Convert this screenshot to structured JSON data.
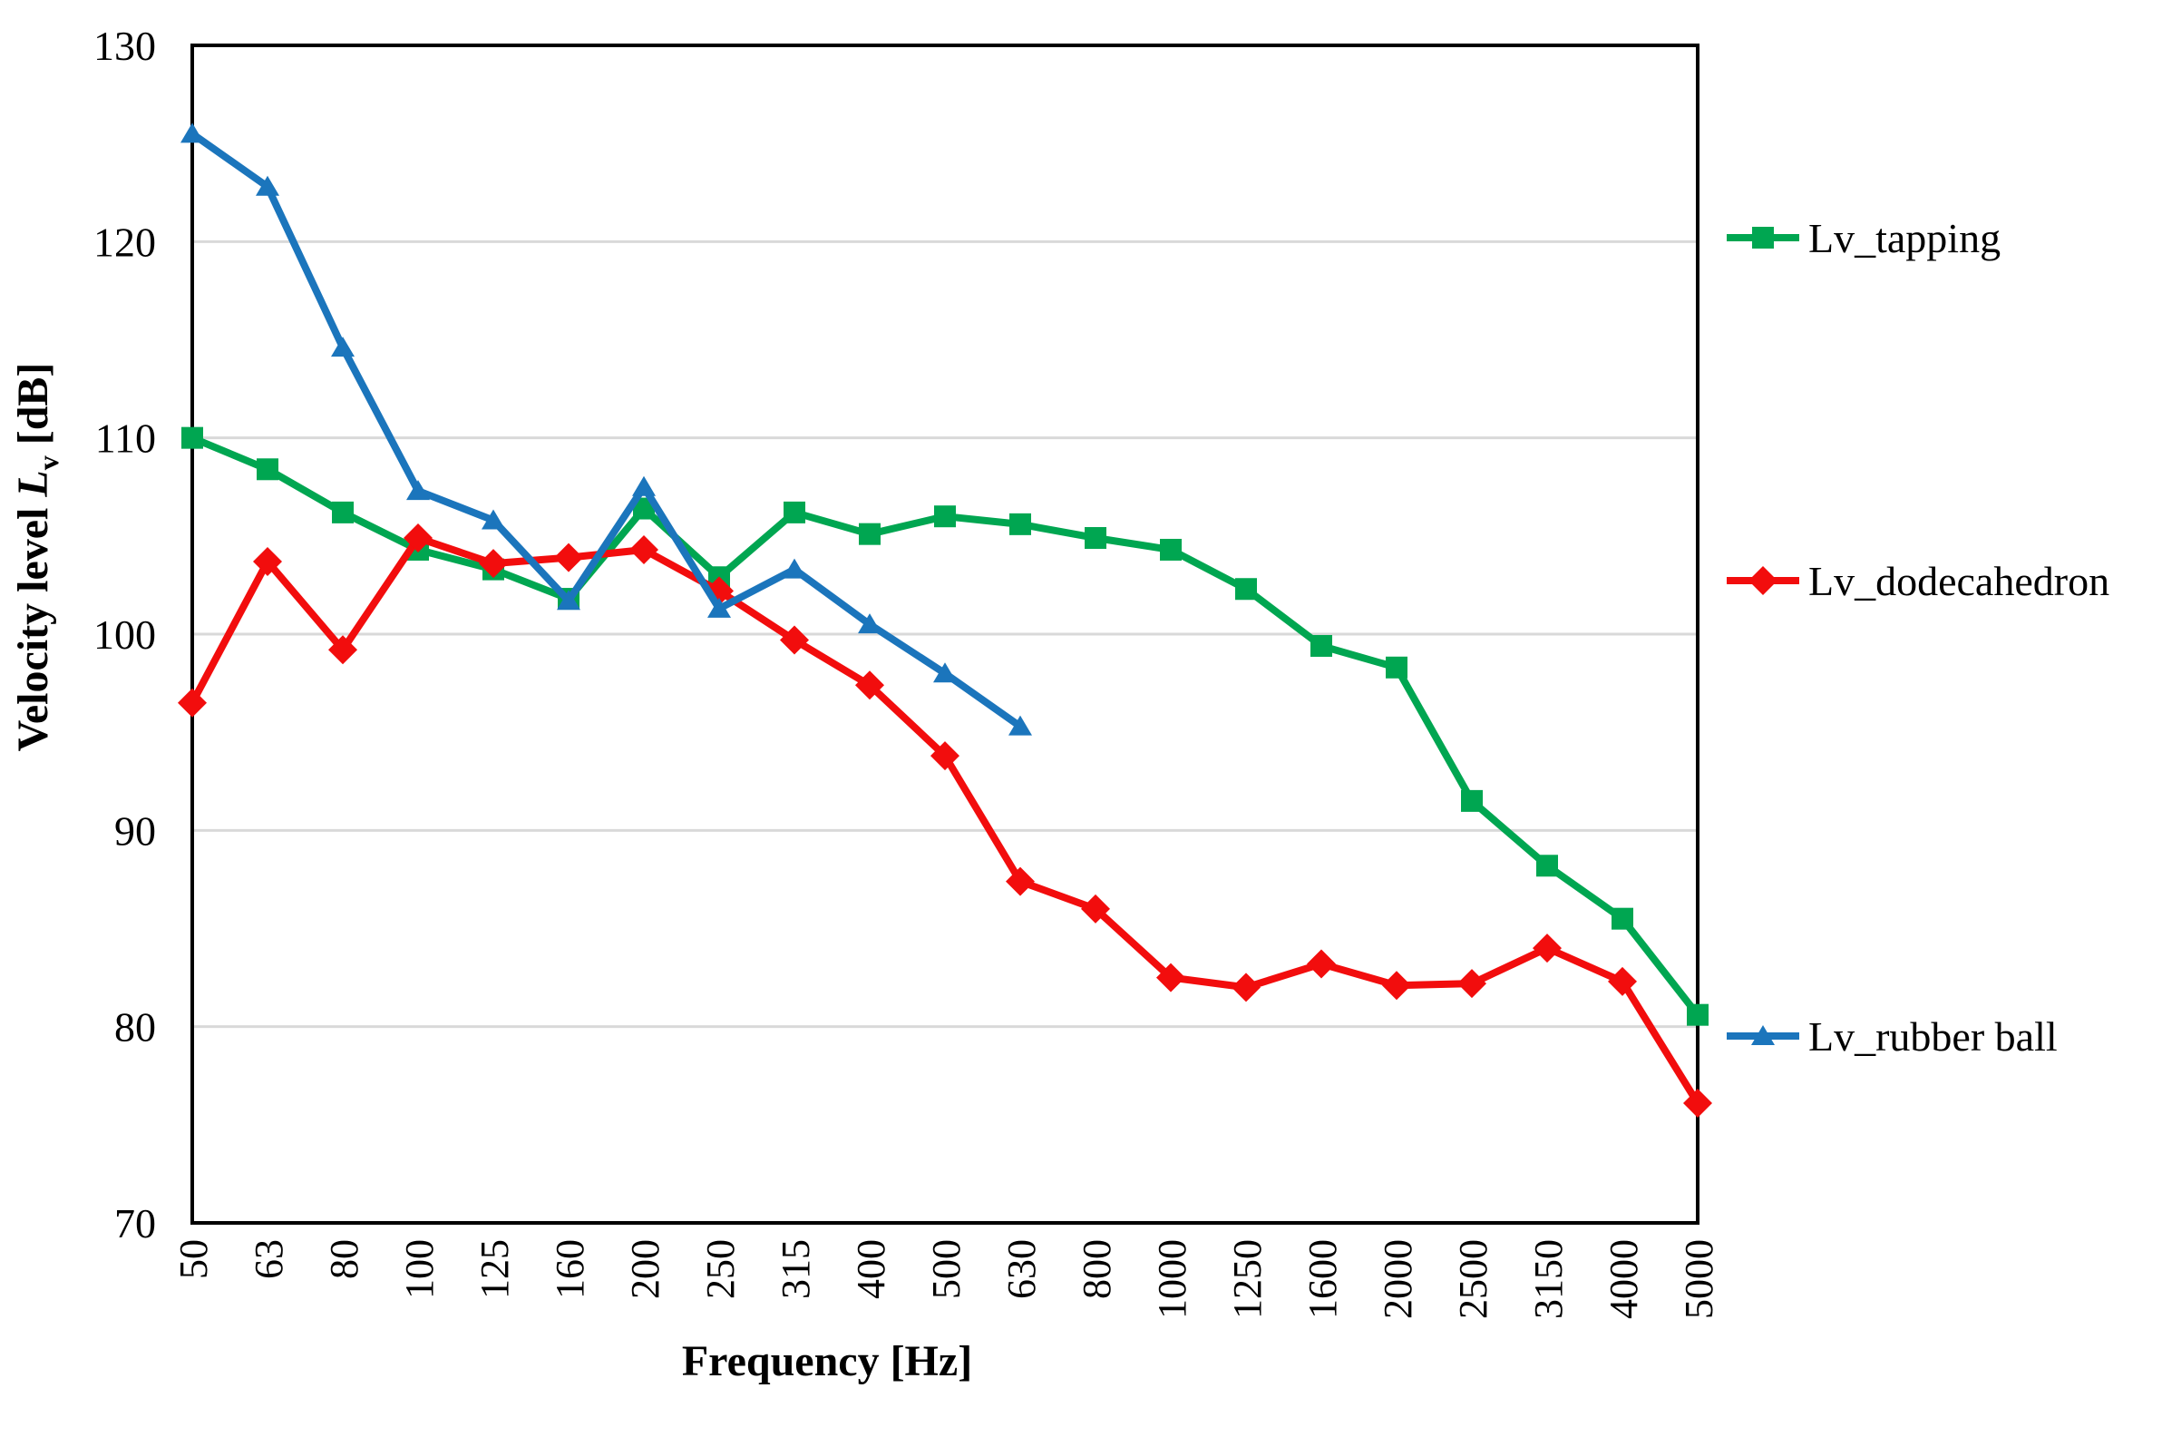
{
  "page": {
    "background": "#ffffff"
  },
  "chart_data": {
    "type": "line",
    "title": "",
    "xlabel": "Frequency [Hz]",
    "ylabel": "Velocity level Lv [dB]",
    "ylabel_parts": {
      "prefix": "Velocity level ",
      "symbol": "L",
      "subscript": "v",
      "suffix": " [dB]"
    },
    "categories": [
      "50",
      "63",
      "80",
      "100",
      "125",
      "160",
      "200",
      "250",
      "315",
      "400",
      "500",
      "630",
      "800",
      "1000",
      "1250",
      "1600",
      "2000",
      "2500",
      "3150",
      "4000",
      "5000"
    ],
    "ylim": [
      70,
      130
    ],
    "yticks": [
      70,
      80,
      90,
      100,
      110,
      120,
      130
    ],
    "grid": true,
    "gridcolor": "#D9D9D9",
    "axiscolor": "#000000",
    "legend_position": "right",
    "series": [
      {
        "name": "Lv_tapping",
        "color": "#00A651",
        "marker": "square",
        "values": [
          110.0,
          108.4,
          106.2,
          104.3,
          103.3,
          101.8,
          106.4,
          102.9,
          106.2,
          105.1,
          106.0,
          105.6,
          104.9,
          104.3,
          102.3,
          99.4,
          98.3,
          91.5,
          88.2,
          85.5,
          80.6
        ]
      },
      {
        "name": "Lv_dodecahedron",
        "color": "#F20D0D",
        "marker": "diamond",
        "values": [
          96.5,
          103.7,
          99.2,
          104.9,
          103.6,
          103.9,
          104.3,
          102.2,
          99.7,
          97.4,
          93.8,
          87.4,
          86.0,
          82.5,
          82.0,
          83.2,
          82.1,
          82.2,
          84.0,
          82.3,
          76.1
        ]
      },
      {
        "name": "Lv_rubber ball",
        "color": "#1B75BC",
        "marker": "triangle",
        "values": [
          125.5,
          122.8,
          114.6,
          107.3,
          105.8,
          101.7,
          107.5,
          101.3,
          103.3,
          100.5,
          98.0,
          95.3,
          null,
          null,
          null,
          null,
          null,
          null,
          null,
          null,
          null
        ]
      }
    ]
  }
}
